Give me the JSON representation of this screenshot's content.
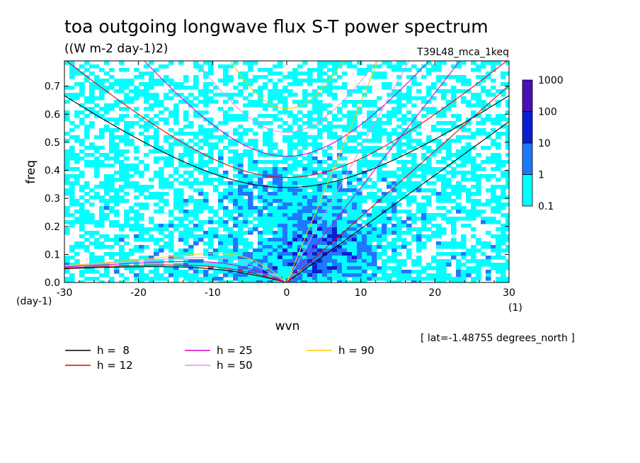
{
  "chart_data": {
    "type": "heatmap",
    "title": "toa outgoing longwave flux S-T power spectrum",
    "units": "((W m-2 day-1)2)",
    "run_label": "T39L48_mca_1keq",
    "xlabel": "wvn",
    "x_units": "(1)",
    "ylabel": "freq",
    "y_units": "(day-1)",
    "xlim": [
      -30,
      30
    ],
    "ylim": [
      0,
      0.79
    ],
    "x_ticks": [
      "-30",
      "-20",
      "-10",
      "0",
      "10",
      "20",
      "30"
    ],
    "y_ticks": [
      "0.0",
      "0.1",
      "0.2",
      "0.3",
      "0.4",
      "0.5",
      "0.6",
      "0.7"
    ],
    "location": "[ lat=-1.48755 degrees_north ]",
    "colorbar": {
      "levels": [
        "0.1",
        "1",
        "10",
        "100",
        "1000"
      ],
      "colors": [
        "#00ffff",
        "#1e78ff",
        "#0a1ed2",
        "#4b0fb4"
      ]
    },
    "dispersion_curves": [
      {
        "label": "h =  8",
        "h": 8,
        "color": "#000000"
      },
      {
        "label": "h = 12",
        "h": 12,
        "color": "#e60000"
      },
      {
        "label": "h = 25",
        "h": 25,
        "color": "#d700c8"
      },
      {
        "label": "h = 50",
        "h": 50,
        "color": "#d99be0"
      },
      {
        "label": "h = 90",
        "h": 90,
        "color": "#ffc800"
      }
    ]
  }
}
